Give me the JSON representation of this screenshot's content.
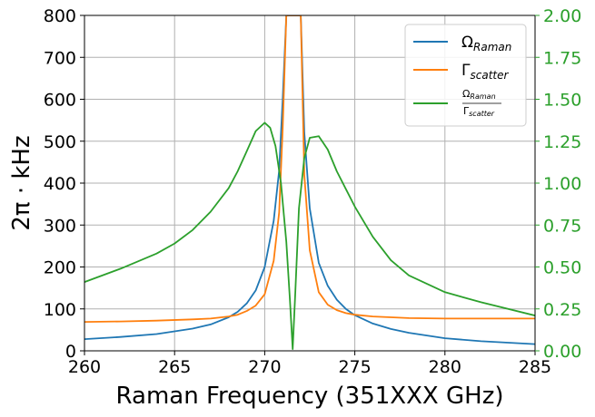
{
  "chart_data": {
    "type": "line",
    "xlabel": "Raman Frequency (351XXX GHz)",
    "ylabel": "2π · kHz",
    "xlim": [
      260,
      285
    ],
    "ylim_left": [
      0,
      800
    ],
    "ylim_right": [
      0.0,
      2.0
    ],
    "x_ticks": [
      "260",
      "265",
      "270",
      "275",
      "280",
      "285"
    ],
    "y_ticks_left": [
      "0",
      "100",
      "200",
      "300",
      "400",
      "500",
      "600",
      "700",
      "800"
    ],
    "y_ticks_right": [
      "0.00",
      "0.25",
      "0.50",
      "0.75",
      "1.00",
      "1.25",
      "1.50",
      "1.75",
      "2.00"
    ],
    "grid": true,
    "legend_position": "top-right",
    "right_axis_color": "#2ca02c",
    "series": [
      {
        "name": "Ω_Raman",
        "axis": "left",
        "color": "#1f77b4",
        "x": [
          260,
          262,
          264,
          266,
          267,
          268,
          268.5,
          269,
          269.5,
          270,
          270.5,
          270.8,
          271.0,
          271.2,
          271.4,
          271.6,
          271.8,
          272.0,
          272.2,
          272.5,
          273,
          273.5,
          274,
          274.5,
          275,
          276,
          277,
          278,
          280,
          282,
          285
        ],
        "y": [
          28,
          33,
          40,
          53,
          63,
          80,
          93,
          113,
          144,
          200,
          310,
          430,
          600,
          800,
          800,
          800,
          800,
          800,
          520,
          340,
          210,
          155,
          122,
          100,
          85,
          65,
          52,
          43,
          30,
          23,
          16
        ]
      },
      {
        "name": "Γ_scatter",
        "axis": "left",
        "color": "#ff7f0e",
        "x": [
          260,
          262,
          264,
          266,
          267,
          268,
          268.5,
          269,
          269.5,
          270,
          270.5,
          270.8,
          271.0,
          271.2,
          271.4,
          271.6,
          271.8,
          272.0,
          272.2,
          272.5,
          273,
          273.5,
          274,
          274.5,
          275,
          276,
          277,
          278,
          280,
          282,
          285
        ],
        "y": [
          69,
          70,
          72,
          75,
          77,
          82,
          86,
          95,
          108,
          135,
          215,
          330,
          530,
          800,
          800,
          800,
          800,
          800,
          420,
          240,
          140,
          110,
          97,
          90,
          86,
          82,
          80,
          78,
          77,
          77,
          77
        ]
      },
      {
        "name": "Ω_Raman / Γ_scatter",
        "axis": "right",
        "color": "#2ca02c",
        "x": [
          260,
          262,
          264,
          265,
          266,
          267,
          268,
          268.5,
          269,
          269.5,
          270,
          270.3,
          270.6,
          270.9,
          271.2,
          271.4,
          271.55,
          271.7,
          271.9,
          272.2,
          272.5,
          273,
          273.5,
          274,
          275,
          276,
          277,
          278,
          280,
          282,
          285
        ],
        "y": [
          0.41,
          0.49,
          0.58,
          0.64,
          0.72,
          0.83,
          0.97,
          1.07,
          1.19,
          1.31,
          1.36,
          1.33,
          1.22,
          1.0,
          0.65,
          0.3,
          0.01,
          0.35,
          0.85,
          1.15,
          1.27,
          1.28,
          1.2,
          1.07,
          0.86,
          0.68,
          0.54,
          0.45,
          0.35,
          0.29,
          0.21
        ]
      }
    ]
  }
}
